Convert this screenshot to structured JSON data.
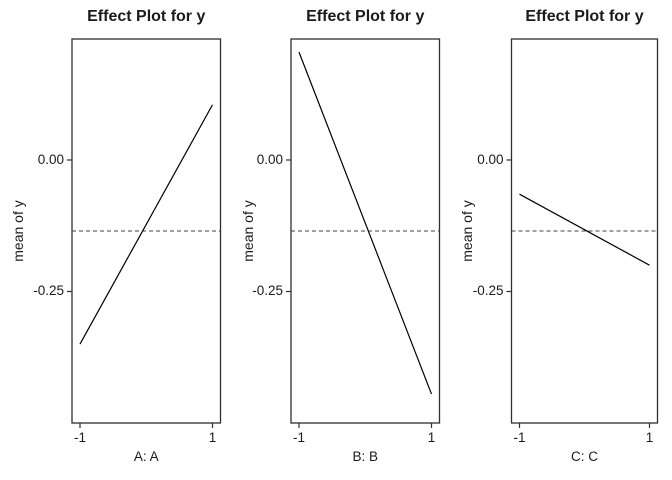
{
  "figure": {
    "background": "#ffffff",
    "text_color": "#1b1b1b",
    "border_color": "#2e2e2e"
  },
  "chart_data": [
    {
      "type": "line",
      "title": "Effect Plot for y",
      "xlabel": "A: A",
      "ylabel": "mean of y",
      "x": [
        -1,
        1
      ],
      "values": [
        -0.35,
        0.105
      ],
      "xlim": [
        -1,
        1
      ],
      "ylim": [
        -0.5,
        0.23
      ],
      "x_ticks": [
        "-1",
        "1"
      ],
      "y_ticks": [
        {
          "label": "0.00",
          "value": 0.0
        },
        {
          "label": "-0.25",
          "value": -0.25
        }
      ],
      "reference_line": {
        "value": -0.135,
        "style": "dashed",
        "color": "#2d4a66"
      },
      "line_color": "#000000",
      "grid": false,
      "legend": false
    },
    {
      "type": "line",
      "title": "Effect Plot for y",
      "xlabel": "B: B",
      "ylabel": "mean of y",
      "x": [
        -1,
        1
      ],
      "values": [
        0.205,
        -0.445
      ],
      "xlim": [
        -1,
        1
      ],
      "ylim": [
        -0.5,
        0.23
      ],
      "x_ticks": [
        "-1",
        "1"
      ],
      "y_ticks": [
        {
          "label": "0.00",
          "value": 0.0
        },
        {
          "label": "-0.25",
          "value": -0.25
        }
      ],
      "reference_line": {
        "value": -0.135,
        "style": "dashed",
        "color": "#2d4a66"
      },
      "line_color": "#000000",
      "grid": false,
      "legend": false
    },
    {
      "type": "line",
      "title": "Effect Plot for y",
      "xlabel": "C: C",
      "ylabel": "mean of y",
      "x": [
        -1,
        1
      ],
      "values": [
        -0.065,
        -0.2
      ],
      "xlim": [
        -1,
        1
      ],
      "ylim": [
        -0.5,
        0.23
      ],
      "x_ticks": [
        "-1",
        "1"
      ],
      "y_ticks": [
        {
          "label": "0.00",
          "value": 0.0
        },
        {
          "label": "-0.25",
          "value": -0.25
        }
      ],
      "reference_line": {
        "value": -0.135,
        "style": "dashed",
        "color": "#2d4a66"
      },
      "line_color": "#000000",
      "grid": false,
      "legend": false
    }
  ]
}
